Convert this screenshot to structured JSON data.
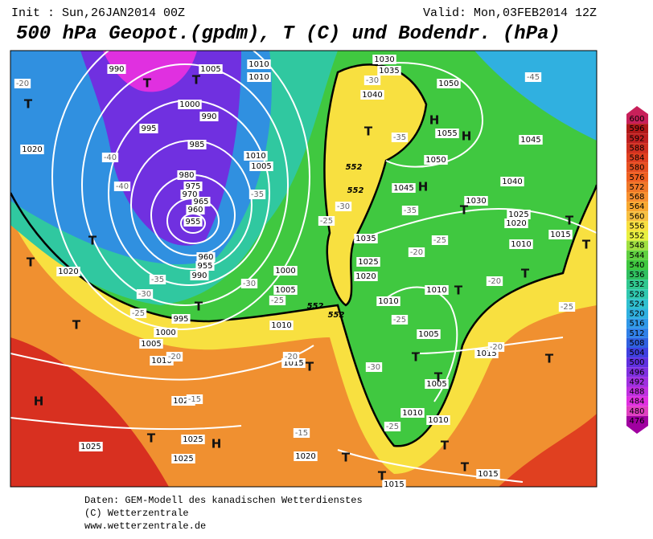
{
  "header": {
    "init": "Init : Sun,26JAN2014 00Z",
    "valid": "Valid: Mon,03FEB2014 12Z",
    "title": "500 hPa Geopot.(gpdm), T (C) und Bodendr. (hPa)"
  },
  "map": {
    "pressure_labels": [
      "990",
      "1005",
      "1010",
      "1010",
      "1000",
      "990",
      "995",
      "985",
      "1010",
      "1005",
      "980",
      "975",
      "970",
      "965",
      "960",
      "955",
      "960",
      "955",
      "990",
      "1020",
      "1020",
      "995",
      "1000",
      "1005",
      "1010",
      "1020",
      "1025",
      "1025",
      "1025",
      "1030",
      "1035",
      "1040",
      "1050",
      "1055",
      "1045",
      "1050",
      "1045",
      "1030",
      "1040",
      "1025",
      "1020",
      "1035",
      "1025",
      "1020",
      "1010",
      "1015",
      "1000",
      "1005",
      "1010",
      "1015",
      "1010",
      "1010",
      "1005",
      "1005",
      "1010",
      "1010",
      "1015",
      "1015",
      "1015",
      "1020"
    ],
    "temperature_labels": [
      "-20",
      "-40",
      "-40",
      "-35",
      "-30",
      "-25",
      "-35",
      "-30",
      "-25",
      "-20",
      "-20",
      "-15",
      "-15",
      "-25",
      "-30",
      "-25",
      "-20",
      "-25",
      "-30",
      "-25",
      "-35",
      "-35",
      "-30",
      "-45",
      "-20",
      "-25",
      "-20"
    ],
    "pressure_centers": [
      "T",
      "T",
      "T",
      "H",
      "H",
      "T",
      "H",
      "T",
      "T",
      "T",
      "T",
      "T",
      "T",
      "T",
      "T",
      "T",
      "T",
      "T",
      "T",
      "H",
      "T",
      "H",
      "T",
      "T",
      "T",
      "T",
      "T"
    ],
    "height_labels": [
      "552",
      "552",
      "552",
      "552"
    ]
  },
  "legend": {
    "levels": [
      {
        "label": "600",
        "color": "#c8205a"
      },
      {
        "label": "596",
        "color": "#b01818"
      },
      {
        "label": "592",
        "color": "#c02020"
      },
      {
        "label": "588",
        "color": "#d03020"
      },
      {
        "label": "584",
        "color": "#e04020"
      },
      {
        "label": "580",
        "color": "#e85020"
      },
      {
        "label": "576",
        "color": "#f06020"
      },
      {
        "label": "572",
        "color": "#f07828"
      },
      {
        "label": "568",
        "color": "#f89030"
      },
      {
        "label": "564",
        "color": "#f8a830"
      },
      {
        "label": "560",
        "color": "#f8c040"
      },
      {
        "label": "556",
        "color": "#f8e040"
      },
      {
        "label": "552",
        "color": "#e8f040"
      },
      {
        "label": "548",
        "color": "#a0e040"
      },
      {
        "label": "544",
        "color": "#60d040"
      },
      {
        "label": "540",
        "color": "#40c840"
      },
      {
        "label": "536",
        "color": "#30c060"
      },
      {
        "label": "532",
        "color": "#30c890"
      },
      {
        "label": "528",
        "color": "#30c8b0"
      },
      {
        "label": "524",
        "color": "#30c0d0"
      },
      {
        "label": "520",
        "color": "#30b0e0"
      },
      {
        "label": "516",
        "color": "#3098e8"
      },
      {
        "label": "512",
        "color": "#3080e8"
      },
      {
        "label": "508",
        "color": "#3060e0"
      },
      {
        "label": "504",
        "color": "#4040e0"
      },
      {
        "label": "500",
        "color": "#6030e0"
      },
      {
        "label": "496",
        "color": "#8030e0"
      },
      {
        "label": "492",
        "color": "#a030e0"
      },
      {
        "label": "488",
        "color": "#c030e0"
      },
      {
        "label": "484",
        "color": "#e030e0"
      },
      {
        "label": "480",
        "color": "#e040c0"
      },
      {
        "label": "476",
        "color": "#a000a0"
      }
    ]
  },
  "footer": {
    "line1": "Daten: GEM-Modell des kanadischen Wetterdienstes",
    "line2": "(C) Wetterzentrale",
    "line3": "www.wetterzentrale.de"
  }
}
